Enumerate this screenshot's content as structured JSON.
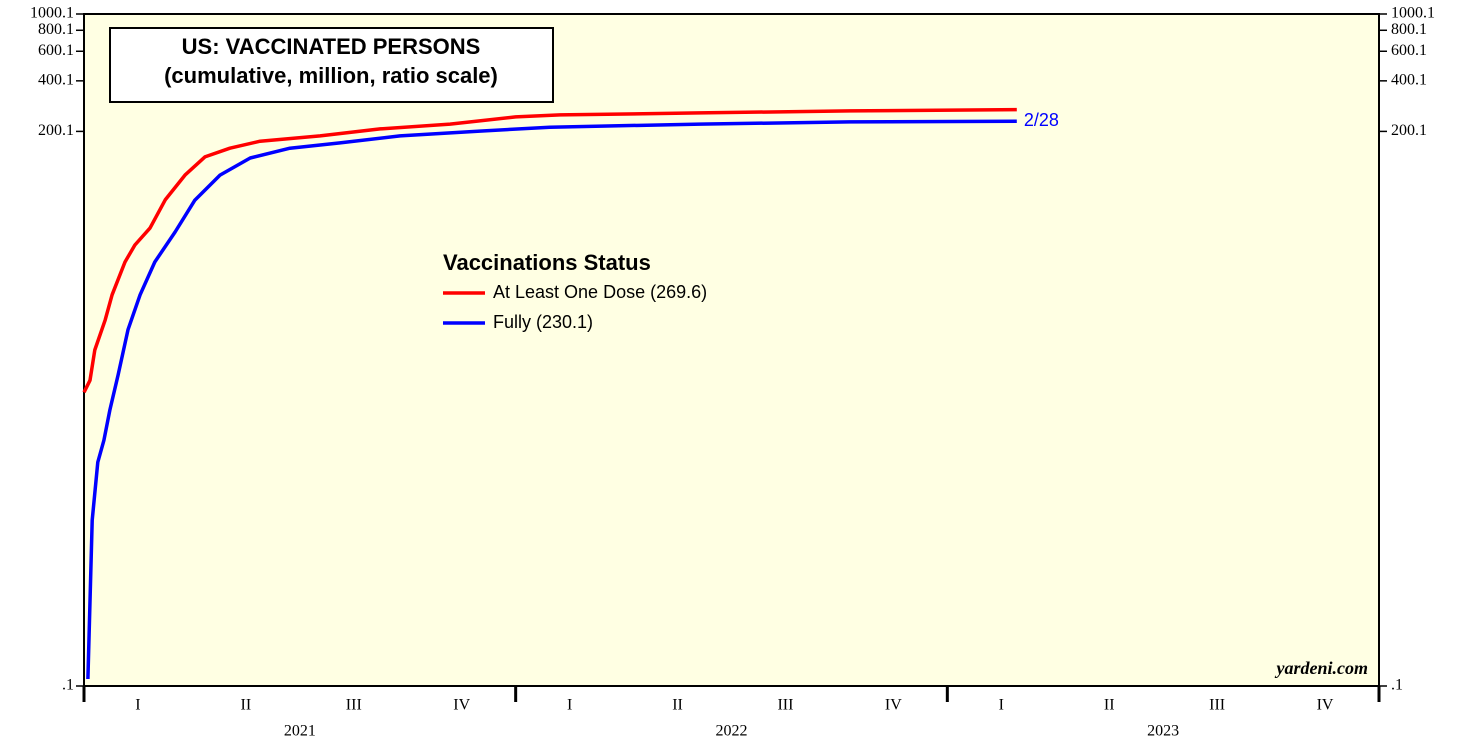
{
  "chart_data": {
    "type": "line",
    "title": "US: VACCINATED PERSONS",
    "subtitle": "(cumulative, million, ratio scale)",
    "legend_title": "Vaccinations Status",
    "annotation": "2/28",
    "source": "yardeni.com",
    "log_scale": true,
    "background": "#ffffe3",
    "xlim": [
      2021,
      2024
    ],
    "xticks": [
      2021,
      2022,
      2023,
      2024
    ],
    "quarter_labels": [
      {
        "value": 2021.125,
        "label": "I"
      },
      {
        "value": 2021.375,
        "label": "II"
      },
      {
        "value": 2021.625,
        "label": "III"
      },
      {
        "value": 2021.875,
        "label": "IV"
      },
      {
        "value": 2022.125,
        "label": "I"
      },
      {
        "value": 2022.375,
        "label": "II"
      },
      {
        "value": 2022.625,
        "label": "III"
      },
      {
        "value": 2022.875,
        "label": "IV"
      },
      {
        "value": 2023.125,
        "label": "I"
      },
      {
        "value": 2023.375,
        "label": "II"
      },
      {
        "value": 2023.625,
        "label": "III"
      },
      {
        "value": 2023.875,
        "label": "IV"
      }
    ],
    "year_labels": [
      {
        "value": 2021.5,
        "label": "2021"
      },
      {
        "value": 2022.5,
        "label": "2022"
      },
      {
        "value": 2023.5,
        "label": "2023"
      }
    ],
    "ylim": [
      0.1,
      1000.1
    ],
    "yticks": [
      {
        "value": 0.1,
        "label": ".1"
      },
      200.1,
      400.1,
      600.1,
      800.1,
      1000.1
    ],
    "series": [
      {
        "name": "At Least One Dose (269.6)",
        "color": "#ff0000",
        "x": [
          2021.0,
          2021.014,
          2021.025,
          2021.049,
          2021.065,
          2021.095,
          2021.118,
          2021.153,
          2021.188,
          2021.234,
          2021.28,
          2021.338,
          2021.408,
          2021.547,
          2021.686,
          2021.848,
          2022.0,
          2022.103,
          2022.427,
          2022.774,
          2023.161
        ],
        "values": [
          5.6,
          6.6,
          10,
          15.1,
          21.3,
          33.4,
          42.2,
          53.2,
          78.2,
          110,
          141,
          159,
          175,
          188,
          207,
          221,
          244,
          251,
          258,
          265,
          269.6
        ]
      },
      {
        "name": "Fully  (230.1)",
        "color": "#0000ff",
        "x": [
          2021.009,
          2021.019,
          2021.032,
          2021.046,
          2021.06,
          2021.079,
          2021.102,
          2021.13,
          2021.164,
          2021.211,
          2021.257,
          2021.315,
          2021.385,
          2021.477,
          2021.593,
          2021.732,
          2021.917,
          2022.079,
          2022.427,
          2022.774,
          2023.161
        ],
        "values": [
          0.11,
          0.97,
          2.15,
          2.9,
          4.4,
          7.1,
          13.2,
          21.3,
          33.4,
          50.4,
          78,
          110,
          139,
          159,
          171,
          188,
          201,
          212,
          221,
          228,
          230.1
        ]
      }
    ]
  }
}
